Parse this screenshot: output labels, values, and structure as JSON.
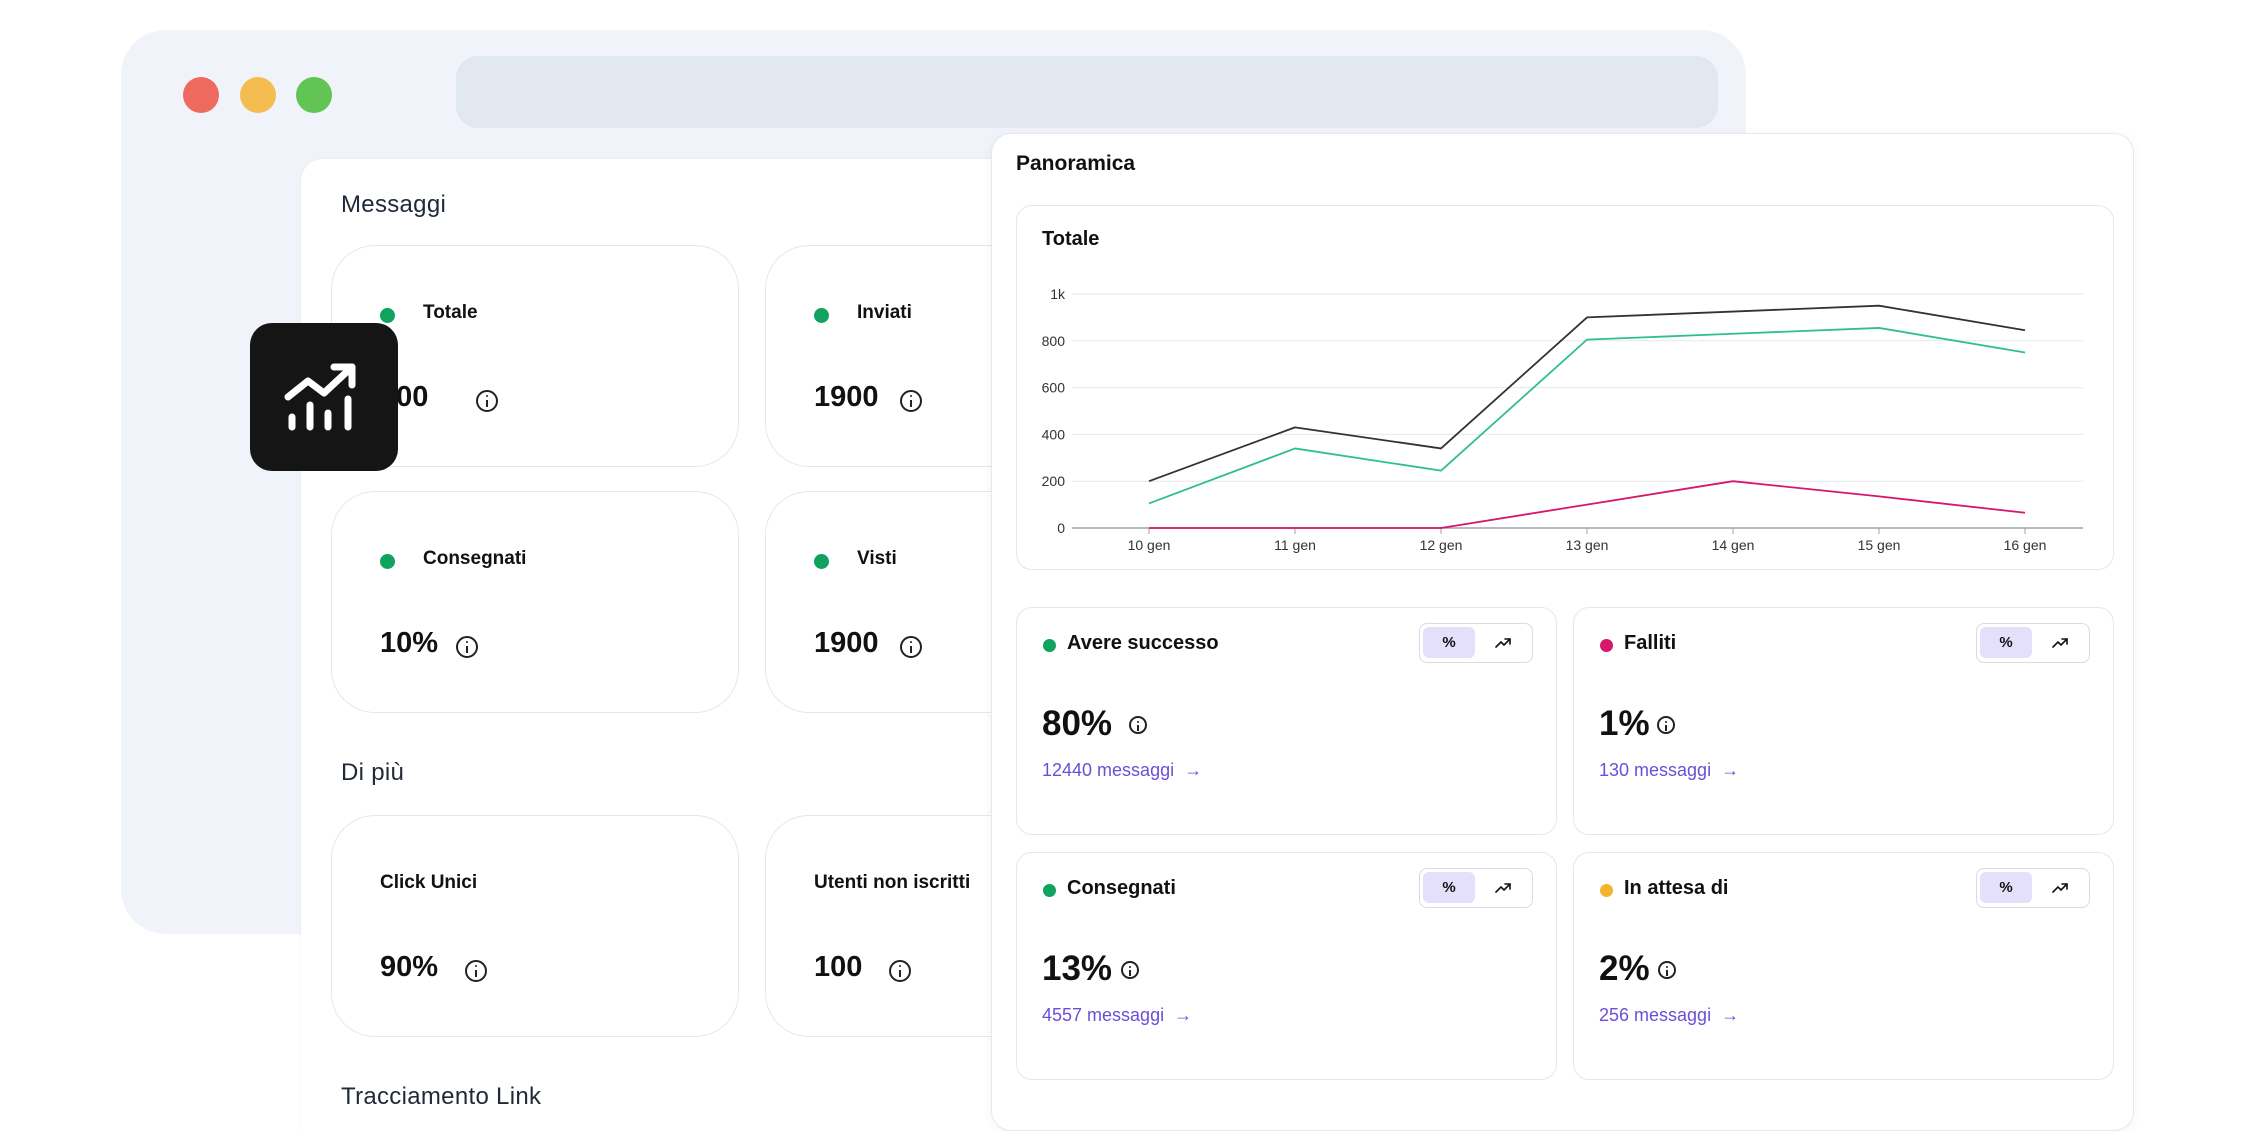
{
  "messaggi": {
    "title": "Messaggi",
    "cards": [
      {
        "label": "Totale",
        "value": "500",
        "status_color": "#10a35f"
      },
      {
        "label": "Inviati",
        "value": "1900",
        "status_color": "#10a35f"
      },
      {
        "label": "Consegnati",
        "value": "10%",
        "status_color": "#10a35f"
      },
      {
        "label": "Visti",
        "value": "1900",
        "status_color": "#10a35f"
      }
    ]
  },
  "di_piu": {
    "title": "Di più",
    "cards": [
      {
        "label": "Click Unici",
        "value": "90%"
      },
      {
        "label": "Utenti non iscritti",
        "value": "100"
      }
    ]
  },
  "tracciamento": {
    "title": "Tracciamento Link"
  },
  "badge": {
    "icon": "trending-up-chart-icon"
  },
  "panoramica": {
    "title": "Panoramica",
    "chart_title": "Totale",
    "metrics": [
      {
        "label": "Avere successo",
        "value": "80%",
        "link": "12440 messaggi",
        "color": "#10a35f",
        "toggle_pct": "%"
      },
      {
        "label": "Falliti",
        "value": "1%",
        "link": "130 messaggi",
        "color": "#d6176b",
        "toggle_pct": "%"
      },
      {
        "label": "Consegnati",
        "value": "13%",
        "link": "4557 messaggi",
        "color": "#10a35f",
        "toggle_pct": "%"
      },
      {
        "label": "In attesa di",
        "value": "2%",
        "link": "256 messaggi",
        "color": "#f4b42c",
        "toggle_pct": "%"
      }
    ]
  },
  "chart_data": {
    "type": "line",
    "title": "Totale",
    "categories": [
      "10 gen",
      "11 gen",
      "12 gen",
      "13 gen",
      "14 gen",
      "15 gen",
      "16 gen"
    ],
    "y_ticks": [
      "0",
      "200",
      "400",
      "600",
      "800",
      "1k"
    ],
    "ylim": [
      0,
      1000
    ],
    "grid": true,
    "series": [
      {
        "color": "#333333",
        "values": [
          200,
          430,
          340,
          900,
          925,
          950,
          845
        ]
      },
      {
        "color": "#2fbf8a",
        "values": [
          105,
          340,
          245,
          805,
          830,
          855,
          750
        ]
      },
      {
        "color": "#d6176b",
        "values": [
          0,
          0,
          0,
          100,
          200,
          135,
          65
        ]
      }
    ]
  }
}
